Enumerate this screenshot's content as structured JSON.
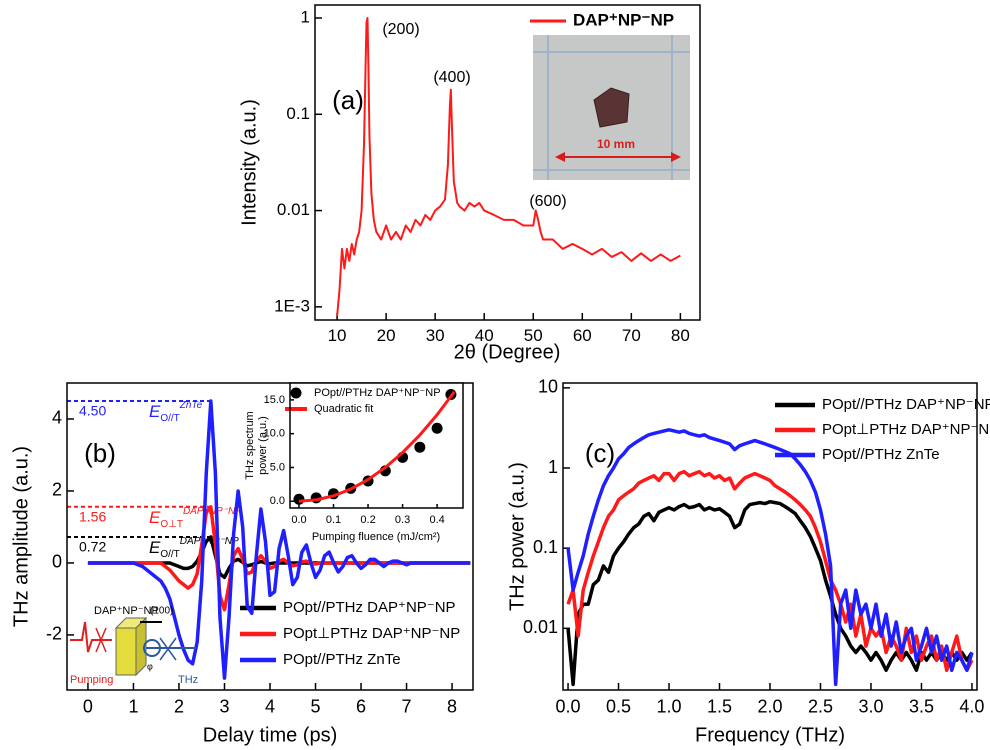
{
  "chart_data": [
    {
      "type": "line",
      "panel_label": "(a)",
      "x_label": "2θ (Degree)",
      "y_label": "Intensity (a.u.)",
      "yscale": "log",
      "xlim": [
        5.5,
        84
      ],
      "ylim": [
        0.00073,
        1.365
      ],
      "xticks": [
        10,
        20,
        30,
        40,
        50,
        60,
        70,
        80
      ],
      "yticks": [
        1,
        0.1,
        0.01,
        {
          "value": 0.001,
          "label": "1E-3"
        }
      ],
      "x": [
        10,
        10.5,
        11,
        11.5,
        12,
        12.5,
        13,
        13.5,
        14,
        14.5,
        15,
        15.5,
        15.8,
        16.0,
        16.2,
        16.4,
        16.6,
        17,
        17.5,
        18,
        19,
        20,
        21,
        22,
        23,
        24,
        25,
        26,
        27,
        28,
        29,
        30,
        31,
        32,
        32.6,
        33.0,
        33.2,
        33.4,
        33.8,
        34.5,
        35,
        36,
        37,
        38,
        39,
        40,
        42,
        44,
        46,
        48,
        50,
        50.5,
        51,
        51.5,
        52,
        54,
        56,
        58,
        60,
        62,
        64,
        66,
        68,
        70,
        72,
        74,
        76,
        78,
        80
      ],
      "series": [
        {
          "name": "DAP⁺NP⁻NP",
          "color": "#ff1a1a",
          "values": [
            0.0008,
            0.0015,
            0.004,
            0.0025,
            0.004,
            0.003,
            0.0045,
            0.0035,
            0.005,
            0.006,
            0.01,
            0.05,
            0.3,
            0.9,
            1.0,
            0.3,
            0.06,
            0.015,
            0.008,
            0.006,
            0.005,
            0.007,
            0.005,
            0.006,
            0.005,
            0.007,
            0.006,
            0.008,
            0.007,
            0.009,
            0.008,
            0.01,
            0.011,
            0.013,
            0.03,
            0.12,
            0.18,
            0.08,
            0.02,
            0.012,
            0.011,
            0.01,
            0.012,
            0.011,
            0.012,
            0.01,
            0.009,
            0.008,
            0.008,
            0.007,
            0.007,
            0.01,
            0.008,
            0.006,
            0.005,
            0.005,
            0.004,
            0.0045,
            0.004,
            0.0035,
            0.004,
            0.0033,
            0.0037,
            0.003,
            0.0036,
            0.003,
            0.0035,
            0.003,
            0.0034
          ]
        }
      ],
      "annotations": [
        "(200)",
        "(400)",
        "(600)"
      ],
      "photo_scale_label": "10 mm"
    },
    {
      "type": "line",
      "panel_label": "(b)",
      "x_label": "Delay time (ps)",
      "y_label": "THz amplitude (a.u.)",
      "xlim": [
        -0.46,
        8.46
      ],
      "ylim": [
        -3.53,
        5.0
      ],
      "xticks": [
        0,
        1,
        2,
        3,
        4,
        5,
        6,
        7,
        8
      ],
      "yticks": [
        -2,
        0,
        2,
        4
      ],
      "x": [
        0,
        0.1,
        0.2,
        0.3,
        0.4,
        0.5,
        0.6,
        0.7,
        0.8,
        0.9,
        1.0,
        1.1,
        1.2,
        1.3,
        1.4,
        1.5,
        1.6,
        1.7,
        1.8,
        1.9,
        2.0,
        2.1,
        2.2,
        2.3,
        2.4,
        2.5,
        2.6,
        2.7,
        2.8,
        2.9,
        3.0,
        3.1,
        3.2,
        3.3,
        3.4,
        3.5,
        3.6,
        3.7,
        3.8,
        3.9,
        4.0,
        4.1,
        4.2,
        4.3,
        4.4,
        4.5,
        4.6,
        4.7,
        4.8,
        4.9,
        5.0,
        5.1,
        5.2,
        5.3,
        5.4,
        5.5,
        5.6,
        5.7,
        5.8,
        5.9,
        6.0,
        6.1,
        6.2,
        6.3,
        6.4,
        6.5,
        6.6,
        6.7,
        6.8,
        6.9,
        7.0,
        7.1,
        7.2,
        7.3,
        7.4,
        7.5,
        7.6,
        7.7,
        7.8,
        7.9,
        8.0,
        8.1,
        8.2,
        8.3,
        8.4
      ],
      "series": [
        {
          "name": "POpt//PTHz DAP⁺NP⁻NP",
          "color": "#000000",
          "values": [
            0,
            0,
            0,
            0,
            0,
            0,
            0,
            0,
            0,
            0,
            0,
            0,
            0,
            0,
            0,
            0,
            0,
            0,
            0,
            -0.05,
            -0.1,
            -0.15,
            -0.15,
            -0.1,
            0.05,
            0.3,
            0.6,
            0.72,
            0.2,
            -0.3,
            -0.4,
            -0.15,
            0.05,
            0.1,
            0.02,
            -0.08,
            -0.05,
            0,
            0.04,
            0,
            -0.02,
            0,
            0,
            0,
            0,
            0,
            0,
            0,
            0,
            0,
            0,
            0,
            0,
            0,
            0,
            0,
            0,
            0,
            0,
            0,
            0,
            0,
            0,
            0,
            0,
            0,
            0,
            0,
            0,
            0,
            0,
            0,
            0,
            0,
            0,
            0,
            0,
            0,
            0,
            0,
            0,
            0,
            0,
            0,
            0
          ]
        },
        {
          "name": "POpt⊥PTHz DAP⁺NP⁻NP",
          "color": "#ff1a1a",
          "values": [
            0,
            0,
            0,
            0,
            0,
            0,
            0,
            0,
            0,
            0,
            0,
            0,
            0,
            0,
            0,
            0,
            0,
            -0.1,
            -0.2,
            -0.35,
            -0.5,
            -0.6,
            -0.7,
            -0.6,
            -0.3,
            0.5,
            1.4,
            1.56,
            0.5,
            -0.9,
            -1.3,
            -0.6,
            0.2,
            0.4,
            0.1,
            -0.3,
            -0.25,
            0.05,
            0.2,
            0.05,
            -0.15,
            -0.1,
            0.05,
            0.1,
            0,
            -0.08,
            -0.05,
            0.03,
            0.05,
            0,
            -0.03,
            0,
            0,
            0,
            0,
            0,
            0,
            0,
            0,
            0,
            0,
            0,
            0,
            0,
            0,
            0,
            0,
            0,
            0,
            0,
            0,
            0,
            0,
            0,
            0,
            0,
            0,
            0,
            0,
            0,
            0,
            0,
            0,
            0,
            0
          ]
        },
        {
          "name": "POpt//PTHz ZnTe",
          "color": "#1f1fff",
          "values": [
            0,
            0,
            0,
            0,
            0,
            0,
            0,
            0,
            0,
            0,
            0,
            -0.05,
            -0.1,
            -0.2,
            -0.3,
            -0.4,
            -0.5,
            -0.7,
            -1.0,
            -1.5,
            -2.0,
            -2.4,
            -2.7,
            -2.8,
            -2.2,
            -0.5,
            2.5,
            4.5,
            2.5,
            -1.5,
            -3.2,
            -1.5,
            0.8,
            2.0,
            1.0,
            -1.2,
            -1.4,
            0.2,
            1.5,
            0.6,
            -0.9,
            -0.8,
            0.4,
            0.9,
            0.2,
            -0.6,
            -0.4,
            0.3,
            0.5,
            0,
            -0.4,
            -0.2,
            0.2,
            0.3,
            0,
            -0.25,
            -0.1,
            0.15,
            0.2,
            0,
            -0.15,
            -0.05,
            0.1,
            0.1,
            0,
            -0.1,
            0,
            0.05,
            0.05,
            0,
            -0.05,
            0,
            0,
            0,
            0,
            0,
            0,
            0,
            0,
            0,
            0,
            0,
            0,
            0,
            0
          ]
        }
      ],
      "reference_lines": [
        {
          "value": 4.5,
          "value_label": "4.50",
          "color": "#1f1fff",
          "symbol": "E",
          "sub": "O//T",
          "sup": "ZnTe"
        },
        {
          "value": 1.56,
          "value_label": "1.56",
          "color": "#ff1a1a",
          "symbol": "E",
          "sub": "O⊥T",
          "sup": "DAP⁺NP⁻NP"
        },
        {
          "value": 0.72,
          "value_label": "0.72",
          "color": "#000000",
          "symbol": "E",
          "sub": "O//T",
          "sup": "DAP⁺NP⁻NP"
        }
      ],
      "schematic_labels": [
        "DAP⁺NP⁻NP",
        "(100)",
        "Pumping",
        "THz",
        "φ"
      ]
    },
    {
      "type": "scatter",
      "x_label": "Pumping fluence (mJ/cm²)",
      "y_label": [
        "THz spectrum",
        "power (a.u.)"
      ],
      "xlim": [
        -0.026,
        0.475
      ],
      "ylim": [
        -1,
        17.5
      ],
      "xticks": [
        {
          "value": 0,
          "label": "0.0"
        },
        0.1,
        0.2,
        0.3,
        0.4
      ],
      "yticks": [
        {
          "value": 0,
          "label": "0.0"
        },
        {
          "value": 5,
          "label": "5.0"
        },
        {
          "value": 10,
          "label": "10.0"
        },
        {
          "value": 15,
          "label": "15.0"
        }
      ],
      "series": [
        {
          "name": "POpt//PTHz DAP⁺NP⁻NP",
          "color": "#000000",
          "mode": "markers",
          "x": [
            0,
            0.05,
            0.1,
            0.15,
            0.2,
            0.25,
            0.3,
            0.35,
            0.4,
            0.44
          ],
          "values": [
            0.3,
            0.5,
            1.1,
            1.9,
            3.0,
            4.5,
            6.5,
            8.0,
            10.8,
            15.8
          ]
        },
        {
          "name": "Quadratic fit",
          "color": "#ff1a1a",
          "mode": "line",
          "x": [
            0,
            0.05,
            0.1,
            0.15,
            0.2,
            0.25,
            0.3,
            0.35,
            0.4,
            0.45
          ],
          "values": [
            0,
            0.2,
            0.8,
            1.8,
            3.2,
            5.0,
            7.2,
            9.8,
            12.8,
            16.2
          ]
        }
      ]
    },
    {
      "type": "line",
      "panel_label": "(c)",
      "x_label": "Frequency (THz)",
      "y_label": "THz power (a.u.)",
      "yscale": "log",
      "xlim": [
        -0.05,
        4.05
      ],
      "ylim": [
        0.0017,
        11.5
      ],
      "xticks": [
        {
          "value": 0,
          "label": "0.0"
        },
        0.5,
        {
          "value": 1,
          "label": "1.0"
        },
        1.5,
        {
          "value": 2,
          "label": "2.0"
        },
        2.5,
        {
          "value": 3,
          "label": "3.0"
        },
        3.5,
        {
          "value": 4,
          "label": "4.0"
        }
      ],
      "yticks": [
        0.01,
        0.1,
        1,
        10
      ],
      "x": [
        0,
        0.05,
        0.1,
        0.15,
        0.2,
        0.25,
        0.3,
        0.35,
        0.4,
        0.45,
        0.5,
        0.55,
        0.6,
        0.65,
        0.7,
        0.75,
        0.8,
        0.85,
        0.9,
        0.95,
        1.0,
        1.05,
        1.1,
        1.15,
        1.2,
        1.25,
        1.3,
        1.35,
        1.4,
        1.45,
        1.5,
        1.55,
        1.6,
        1.65,
        1.7,
        1.75,
        1.8,
        1.85,
        1.9,
        1.95,
        2.0,
        2.05,
        2.1,
        2.15,
        2.2,
        2.25,
        2.3,
        2.35,
        2.4,
        2.45,
        2.5,
        2.55,
        2.6,
        2.65,
        2.7,
        2.75,
        2.8,
        2.85,
        2.9,
        2.95,
        3.0,
        3.05,
        3.1,
        3.15,
        3.2,
        3.25,
        3.3,
        3.35,
        3.4,
        3.45,
        3.5,
        3.55,
        3.6,
        3.65,
        3.7,
        3.75,
        3.8,
        3.85,
        3.9,
        3.95,
        4.0
      ],
      "series": [
        {
          "name": "POpt//PTHz DAP⁺NP⁻NP",
          "color": "#000000",
          "values": [
            0.01,
            0.002,
            0.015,
            0.02,
            0.02,
            0.035,
            0.04,
            0.06,
            0.05,
            0.08,
            0.1,
            0.12,
            0.15,
            0.18,
            0.2,
            0.25,
            0.27,
            0.22,
            0.28,
            0.3,
            0.32,
            0.3,
            0.33,
            0.35,
            0.32,
            0.33,
            0.35,
            0.3,
            0.32,
            0.3,
            0.31,
            0.28,
            0.25,
            0.18,
            0.2,
            0.3,
            0.35,
            0.36,
            0.37,
            0.36,
            0.38,
            0.37,
            0.36,
            0.33,
            0.3,
            0.27,
            0.22,
            0.18,
            0.14,
            0.1,
            0.07,
            0.04,
            0.025,
            0.015,
            0.01,
            0.008,
            0.006,
            0.005,
            0.006,
            0.005,
            0.004,
            0.005,
            0.004,
            0.003,
            0.004,
            0.005,
            0.004,
            0.005,
            0.004,
            0.003,
            0.005,
            0.004,
            0.005,
            0.004,
            0.005,
            0.004,
            0.005,
            0.004,
            0.005,
            0.004,
            0.005
          ]
        },
        {
          "name": "POpt⊥PTHz DAP⁺NP⁻NP",
          "color": "#ff1a1a",
          "values": [
            0.02,
            0.03,
            0.008,
            0.03,
            0.05,
            0.08,
            0.12,
            0.18,
            0.25,
            0.3,
            0.4,
            0.45,
            0.5,
            0.55,
            0.65,
            0.7,
            0.75,
            0.8,
            0.7,
            0.85,
            0.85,
            0.7,
            0.85,
            0.9,
            0.8,
            0.85,
            0.9,
            0.8,
            0.85,
            0.75,
            0.8,
            0.7,
            0.75,
            0.55,
            0.65,
            0.75,
            0.8,
            0.85,
            0.8,
            0.75,
            0.7,
            0.6,
            0.55,
            0.5,
            0.45,
            0.4,
            0.35,
            0.3,
            0.25,
            0.18,
            0.12,
            0.07,
            0.04,
            0.03,
            0.02,
            0.012,
            0.02,
            0.008,
            0.015,
            0.006,
            0.01,
            0.008,
            0.01,
            0.005,
            0.008,
            0.006,
            0.004,
            0.01,
            0.005,
            0.008,
            0.004,
            0.006,
            0.008,
            0.004,
            0.006,
            0.003,
            0.005,
            0.008,
            0.004,
            0.003,
            0.004
          ]
        },
        {
          "name": "POpt//PTHz ZnTe",
          "color": "#1f1fff",
          "values": [
            0.1,
            0.03,
            0.05,
            0.08,
            0.15,
            0.25,
            0.4,
            0.6,
            0.8,
            1.0,
            1.3,
            1.5,
            1.8,
            2.0,
            2.2,
            2.4,
            2.6,
            2.7,
            2.8,
            2.9,
            3.0,
            2.9,
            2.8,
            2.9,
            2.7,
            2.6,
            2.5,
            2.6,
            2.4,
            2.3,
            2.2,
            2.1,
            2.0,
            1.7,
            1.9,
            2.0,
            2.1,
            2.2,
            2.1,
            2.0,
            1.9,
            1.8,
            1.7,
            1.6,
            1.5,
            1.3,
            1.1,
            0.9,
            0.7,
            0.5,
            0.3,
            0.15,
            0.06,
            0.002,
            0.02,
            0.03,
            0.01,
            0.03,
            0.015,
            0.02,
            0.01,
            0.02,
            0.008,
            0.015,
            0.006,
            0.012,
            0.005,
            0.008,
            0.01,
            0.004,
            0.006,
            0.01,
            0.005,
            0.008,
            0.004,
            0.006,
            0.003,
            0.005,
            0.004,
            0.003,
            0.005
          ]
        }
      ]
    }
  ]
}
